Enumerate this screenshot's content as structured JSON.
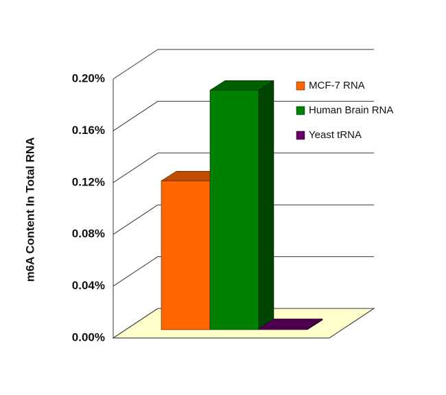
{
  "chart_data": {
    "type": "bar3d",
    "y_label": "m6A Content In Total RNA",
    "series": [
      {
        "name": "MCF-7 RNA",
        "color": "#ff6600",
        "values": [
          0.115
        ]
      },
      {
        "name": "Human Brain RNA",
        "color": "#008000",
        "values": [
          0.185
        ]
      },
      {
        "name": "Yeast tRNA",
        "color": "#660066",
        "values": [
          0.001
        ]
      }
    ],
    "ylim": [
      0,
      0.2
    ],
    "yticks": [
      {
        "value": 0,
        "label": "0.00%"
      },
      {
        "value": 0.04,
        "label": "0.04%"
      },
      {
        "value": 0.08,
        "label": "0.08%"
      },
      {
        "value": 0.12,
        "label": "0.12%"
      },
      {
        "value": 0.16,
        "label": "0.16%"
      },
      {
        "value": 0.2,
        "label": "0.20%"
      }
    ],
    "grid": true,
    "legend": "right"
  }
}
